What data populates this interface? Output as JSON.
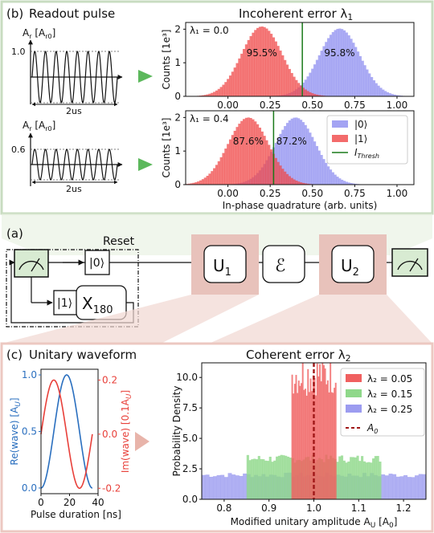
{
  "panel_b": {
    "label": "(b)",
    "readout_title": "Readout pulse",
    "incoherent_title": "Incoherent error λ",
    "incoherent_sub": "1",
    "pulse_axis_label": "A",
    "pulse_axis_sub": "r",
    "pulse_axis_unit": "[A",
    "pulse_axis_unit_sub": "r0",
    "pulse_axis_unit_end": "]",
    "pulses": [
      {
        "amplitude_label": "1.0",
        "duration_label": "2us"
      },
      {
        "amplitude_label": "0.6",
        "duration_label": "2us"
      }
    ]
  },
  "panel_a": {
    "label": "(a)",
    "reset_label": "Reset",
    "ket0": "|0⟩",
    "ket1": "|1⟩",
    "x_gate": "X",
    "x_gate_sub": "180",
    "u1": "U",
    "u1_sub": "1",
    "channel": "ℰ",
    "u2": "U",
    "u2_sub": "2"
  },
  "panel_c": {
    "label": "(c)",
    "unitary_title": "Unitary waveform",
    "coherent_title": "Coherent error λ",
    "coherent_sub": "2"
  },
  "chart_data": [
    {
      "id": "hist_l1_00",
      "type": "bar",
      "annotation": "λ₁ = 0.0",
      "ylabel": "Counts [1e³]",
      "xlabel": "",
      "xlim": [
        -0.25,
        1.1
      ],
      "ylim": [
        0,
        2.2
      ],
      "xticks": [
        "0.00",
        "0.25",
        "0.50",
        "0.75",
        "1.00"
      ],
      "yticks": [
        "0",
        "1",
        "2"
      ],
      "threshold": 0.44,
      "series": [
        {
          "name": "|0⟩",
          "color": "#8c8cf0",
          "mean": 0.66,
          "sigma": 0.12,
          "peak": 2.02
        },
        {
          "name": "|1⟩",
          "color": "#f04646",
          "mean": 0.2,
          "sigma": 0.12,
          "peak": 2.08
        }
      ],
      "labels": [
        "95.5%",
        "95.8%"
      ]
    },
    {
      "id": "hist_l1_04",
      "type": "bar",
      "annotation": "λ₁ = 0.4",
      "ylabel": "Counts [1e³]",
      "xlabel": "In-phase quadrature (arb. units)",
      "xlim": [
        -0.25,
        1.1
      ],
      "ylim": [
        0,
        2.2
      ],
      "xticks": [
        "0.00",
        "0.25",
        "0.50",
        "0.75",
        "1.00"
      ],
      "yticks": [
        "0",
        "1",
        "2"
      ],
      "threshold": 0.27,
      "series": [
        {
          "name": "|0⟩",
          "color": "#8c8cf0",
          "mean": 0.4,
          "sigma": 0.12,
          "peak": 2.0
        },
        {
          "name": "|1⟩",
          "color": "#f04646",
          "mean": 0.12,
          "sigma": 0.12,
          "peak": 2.0
        }
      ],
      "labels": [
        "87.6%",
        "87.2%"
      ],
      "legend": [
        "|0⟩",
        "|1⟩",
        "I"
      ],
      "legend_sub": "Thresh"
    },
    {
      "id": "waveform",
      "type": "line",
      "xlabel": "Pulse duration [ns]",
      "ylabel_left": "Re(wave) [A",
      "ylabel_left_sub": "U",
      "ylabel_left_end": "]",
      "ylabel_right": "Im(wave) [0.1A",
      "ylabel_right_sub": "U",
      "ylabel_right_end": "]",
      "xlim": [
        0,
        40
      ],
      "ylim_left": [
        -0.05,
        1.05
      ],
      "ylim_right": [
        -0.22,
        0.24
      ],
      "xticks": [
        "0",
        "20",
        "40"
      ],
      "yticks_left": [
        "0.0",
        "0.5",
        "1.0"
      ],
      "yticks_right": [
        "-0.2",
        "0.0",
        "0.2"
      ],
      "series": [
        {
          "name": "Re",
          "color": "#2a6fbf",
          "axis": "left"
        },
        {
          "name": "Im",
          "color": "#e8403a",
          "axis": "right"
        }
      ]
    },
    {
      "id": "coherent_hist",
      "type": "bar",
      "xlabel": "Modified unitary amplitude A",
      "xlabel_sub": "U",
      "xlabel_end": " [A",
      "xlabel_end_sub": "0",
      "xlabel_close": "]",
      "ylabel": "Probability Density",
      "xlim": [
        0.75,
        1.25
      ],
      "ylim": [
        0,
        11.2
      ],
      "xticks": [
        "0.8",
        "0.9",
        "1.0",
        "1.1",
        "1.2"
      ],
      "yticks": [
        "0.0",
        "2.5",
        "5.0",
        "7.5",
        "10.0"
      ],
      "series": [
        {
          "name": "λ₂ = 0.05",
          "color": "#f06060",
          "range": [
            0.95,
            1.05
          ],
          "level": 10.0
        },
        {
          "name": "λ₂ = 0.15",
          "color": "#8fd88a",
          "range": [
            0.85,
            1.15
          ],
          "level": 3.33
        },
        {
          "name": "λ₂ = 0.25",
          "color": "#9c9cf0",
          "range": [
            0.75,
            1.25
          ],
          "level": 2.0
        }
      ],
      "marker": {
        "name": "A",
        "sub": "0",
        "x": 1.0,
        "color": "#a01818"
      }
    }
  ]
}
